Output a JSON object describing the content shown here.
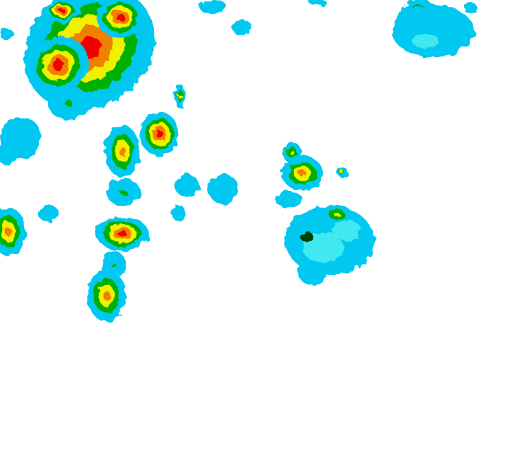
{
  "map": {
    "type": "weather-radar-reflectivity",
    "background": "#ffffff",
    "palette": {
      "light_blue": "#00c8f0",
      "cyan": "#40e8f0",
      "green": "#00b000",
      "dark_green": "#004000",
      "yellow": "#f0f000",
      "orange": "#f08000",
      "red": "#f00000"
    }
  }
}
